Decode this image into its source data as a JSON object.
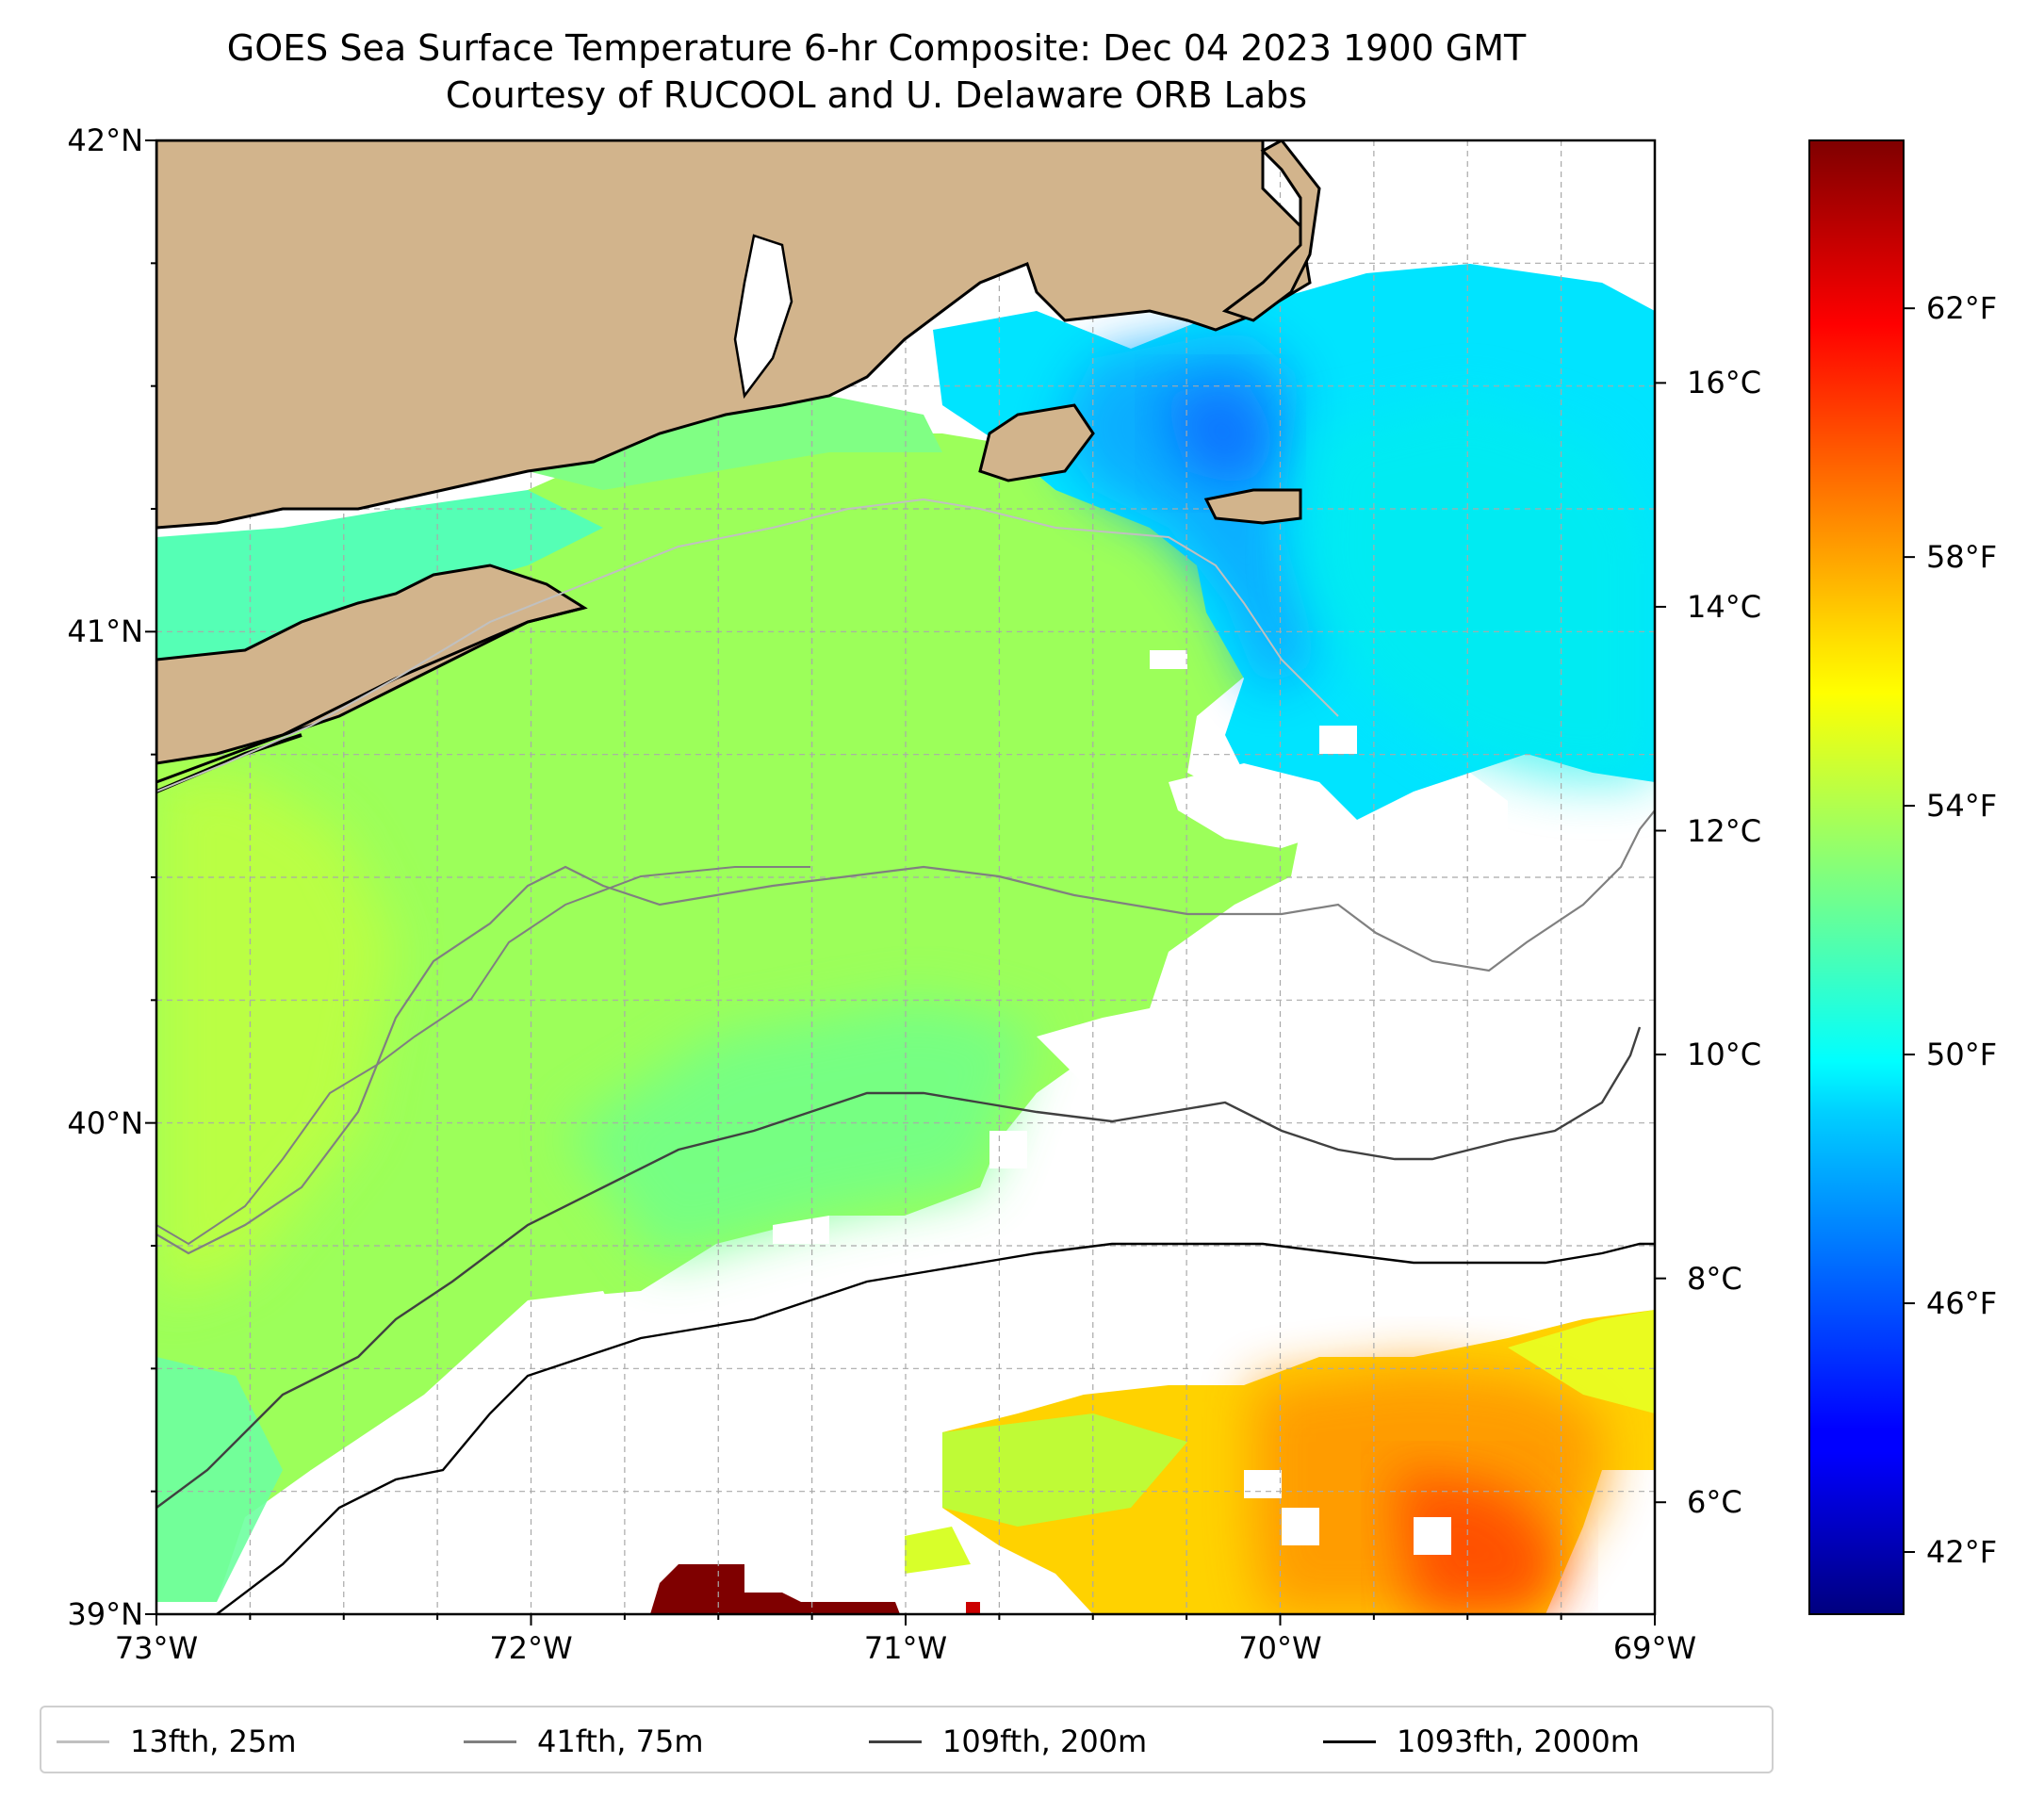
{
  "title": {
    "line1": "GOES Sea Surface Temperature 6-hr Composite: Dec 04 2023 1900 GMT",
    "line2": "Courtesy of RUCOOL and U. Delaware ORB Labs"
  },
  "map": {
    "lon_range": [
      -73,
      -69
    ],
    "lat_range": [
      39,
      42
    ],
    "grid": true,
    "lat_ticks": [
      {
        "value": 42,
        "label": "42°N"
      },
      {
        "value": 41,
        "label": "41°N"
      },
      {
        "value": 40,
        "label": "40°N"
      },
      {
        "value": 39,
        "label": "39°N"
      }
    ],
    "lon_ticks": [
      {
        "value": -73,
        "label": "73°W"
      },
      {
        "value": -72,
        "label": "72°W"
      },
      {
        "value": -71,
        "label": "71°W"
      },
      {
        "value": -70,
        "label": "70°W"
      },
      {
        "value": -69,
        "label": "69°W"
      }
    ],
    "colors": {
      "land": "#d2b48c",
      "coast": "#000000",
      "grid": "#a9a9a9"
    }
  },
  "colorbar": {
    "colormap": "jet",
    "celsius_ticks": [
      {
        "value": 16,
        "label": "16°C"
      },
      {
        "value": 14,
        "label": "14°C"
      },
      {
        "value": 12,
        "label": "12°C"
      },
      {
        "value": 10,
        "label": "10°C"
      },
      {
        "value": 8,
        "label": "8°C"
      },
      {
        "value": 6,
        "label": "6°C"
      }
    ],
    "fahrenheit_ticks": [
      {
        "value": 62,
        "label": "62°F"
      },
      {
        "value": 58,
        "label": "58°F"
      },
      {
        "value": 54,
        "label": "54°F"
      },
      {
        "value": 50,
        "label": "50°F"
      },
      {
        "value": 46,
        "label": "46°F"
      },
      {
        "value": 42,
        "label": "42°F"
      }
    ]
  },
  "legend": {
    "placement": "bottom",
    "items": [
      {
        "label": "13fth, 25m",
        "color": "#c0c0c0"
      },
      {
        "label": "41fth, 75m",
        "color": "#808080"
      },
      {
        "label": "109fth, 200m",
        "color": "#404040"
      },
      {
        "label": "1093fth, 2000m",
        "color": "#000000"
      }
    ]
  }
}
